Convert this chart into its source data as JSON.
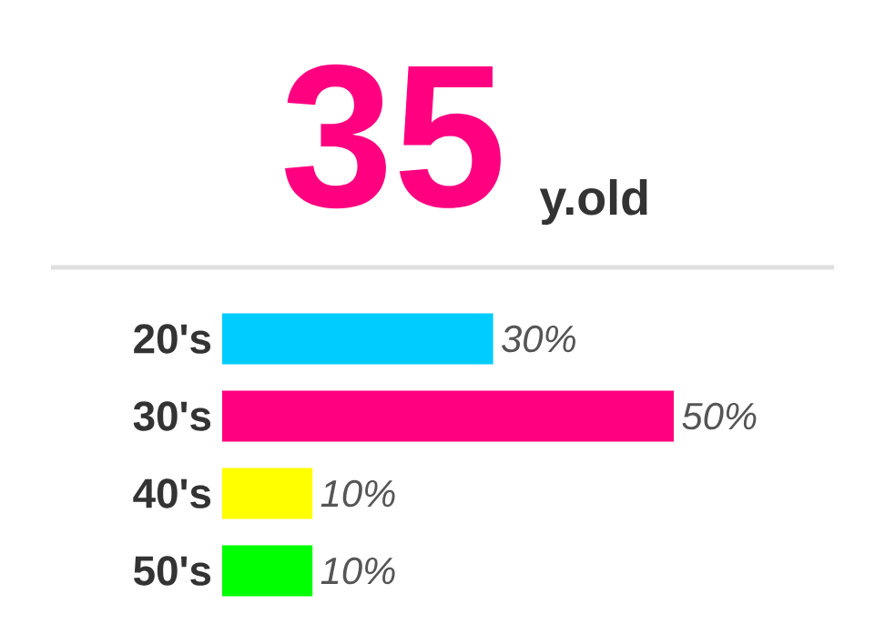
{
  "chart_data": {
    "type": "bar",
    "orientation": "horizontal",
    "title": "35",
    "subtitle": "y.old",
    "categories": [
      "20's",
      "30's",
      "40's",
      "50's"
    ],
    "values": [
      30,
      50,
      10,
      10
    ],
    "colors": [
      "#00ccff",
      "#ff0080",
      "#ffff00",
      "#00ff00"
    ],
    "value_labels": [
      "30%",
      "50%",
      "10%",
      "10%"
    ]
  }
}
